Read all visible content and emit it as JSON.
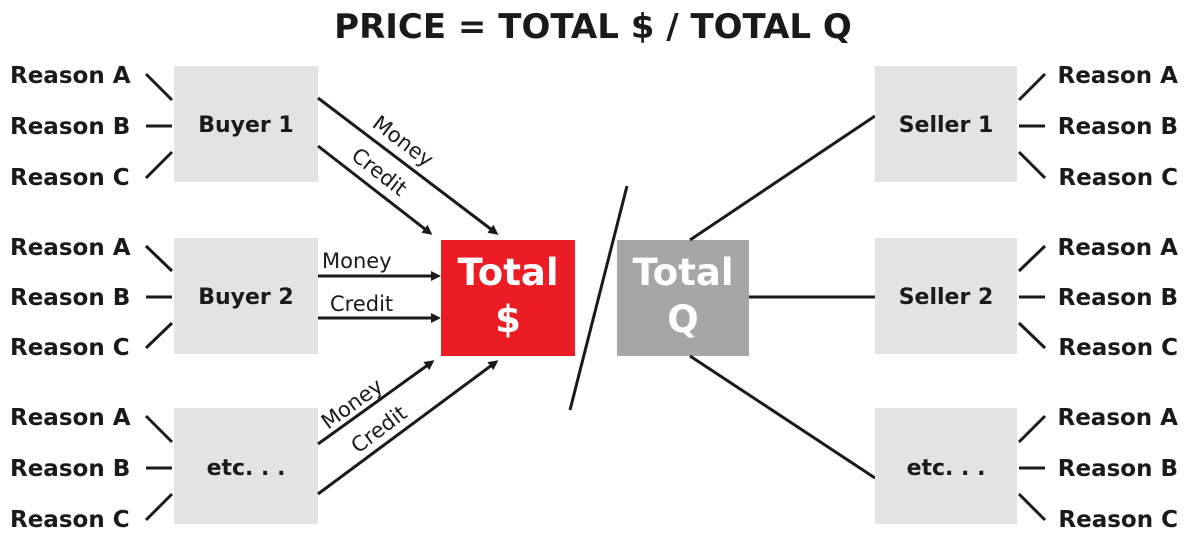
{
  "title": "PRICE = TOTAL $ / TOTAL Q",
  "colors": {
    "total_money": "#ec1c24",
    "total_quantity": "#a6a6a8",
    "party_box": "#e3e3e3",
    "ink": "#1a1a1a"
  },
  "buyers": [
    {
      "label": "Buyer 1",
      "reasons": [
        "Reason A",
        "Reason B",
        "Reason C"
      ],
      "flows": [
        "Money",
        "Credit"
      ]
    },
    {
      "label": "Buyer 2",
      "reasons": [
        "Reason A",
        "Reason B",
        "Reason C"
      ],
      "flows": [
        "Money",
        "Credit"
      ]
    },
    {
      "label": "etc. . .",
      "reasons": [
        "Reason A",
        "Reason B",
        "Reason C"
      ],
      "flows": [
        "Money",
        "Credit"
      ]
    }
  ],
  "sellers": [
    {
      "label": "Seller 1",
      "reasons": [
        "Reason A",
        "Reason B",
        "Reason C"
      ]
    },
    {
      "label": "Seller 2",
      "reasons": [
        "Reason A",
        "Reason B",
        "Reason C"
      ]
    },
    {
      "label": "etc. . .",
      "reasons": [
        "Reason A",
        "Reason B",
        "Reason C"
      ]
    }
  ],
  "total_money": {
    "line1": "Total",
    "line2": "$"
  },
  "total_quantity": {
    "line1": "Total",
    "line2": "Q"
  }
}
